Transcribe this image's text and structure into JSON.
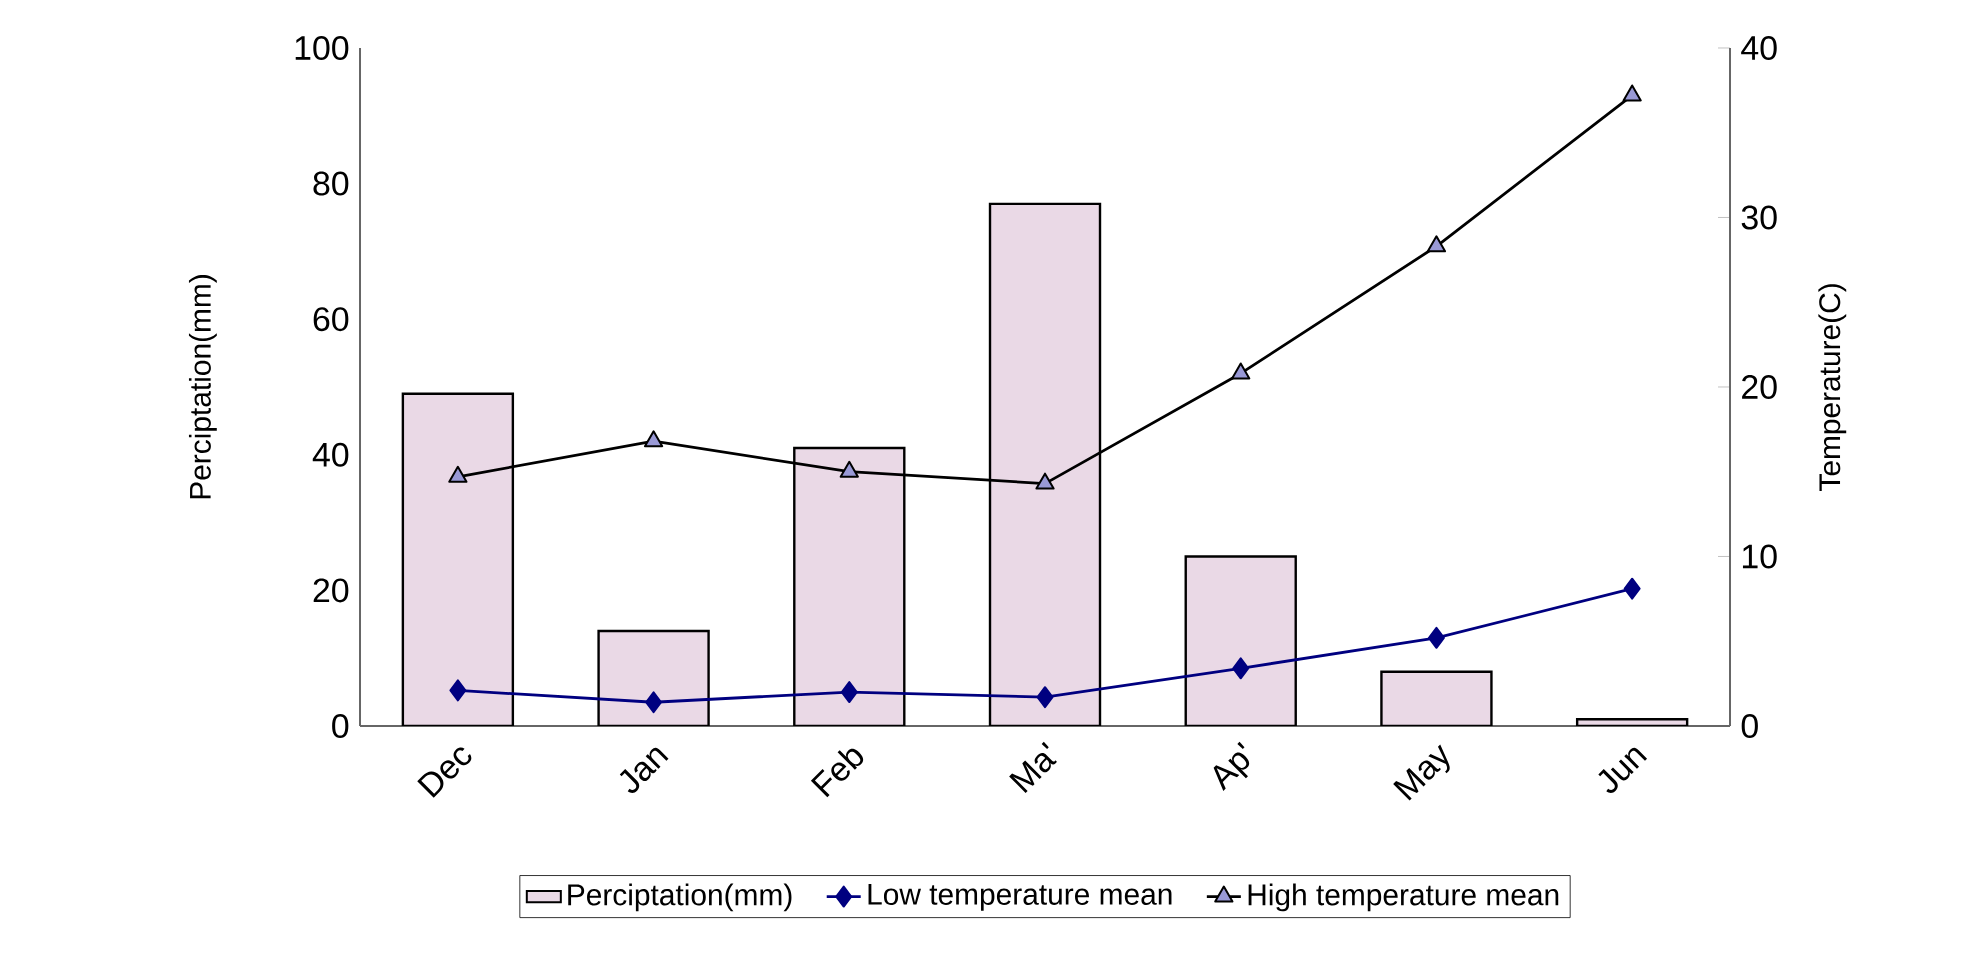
{
  "chart_data": {
    "type": "bar",
    "ylabel": "Perciptation(mm)",
    "y2label": "Temperature(C)",
    "categories": [
      "Dec",
      "Jan",
      "Feb",
      "Ma'",
      "Ap'",
      "May",
      "Jun"
    ],
    "series": [
      {
        "name": "Perciptation(mm)",
        "color": "#ead9e6",
        "values": [
          49,
          14,
          41,
          77,
          25,
          8,
          1
        ]
      },
      {
        "name": "Low temperature mean",
        "type": "line",
        "axis": "y2",
        "color": "#000080",
        "marker": "diamond",
        "values": [
          2.1,
          1.4,
          2.0,
          1.7,
          3.4,
          5.2,
          8.1
        ]
      },
      {
        "name": "High temperature mean",
        "type": "line",
        "axis": "y2",
        "color": "#000000",
        "marker": "triangle",
        "values": [
          14.7,
          16.8,
          15.0,
          14.3,
          20.8,
          28.3,
          37.2
        ]
      }
    ],
    "ylim": [
      0,
      100
    ],
    "yticks": [
      0,
      20,
      40,
      60,
      80,
      100
    ],
    "y2lim": [
      0,
      40
    ],
    "y2ticks": [
      0,
      10,
      20,
      30,
      40
    ],
    "legend": "bottom",
    "grid": false
  }
}
